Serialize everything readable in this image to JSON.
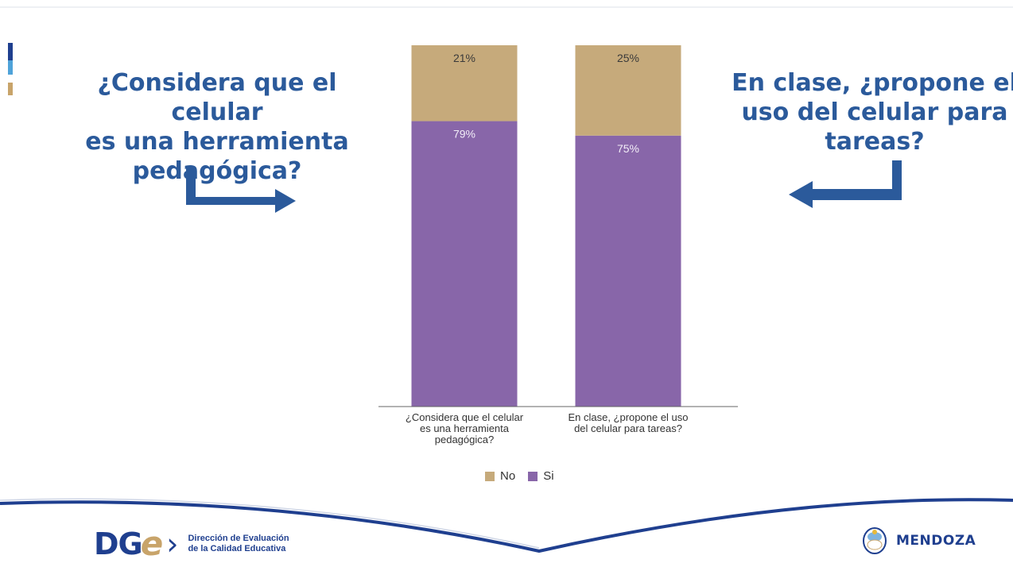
{
  "left_question": [
    "¿Considera que el celular",
    "es una herramienta",
    "pedagógica?"
  ],
  "right_question": [
    "En clase, ¿propone el",
    "uso del celular para",
    "tareas?"
  ],
  "chart_data": {
    "type": "bar",
    "stacked": true,
    "categories": [
      [
        "¿Considera que el celular",
        "es una herramienta",
        "pedagógica?"
      ],
      [
        "En clase, ¿propone el uso",
        "del celular para tareas?"
      ]
    ],
    "series": [
      {
        "name": "No",
        "values": [
          21,
          25
        ],
        "labels": [
          "21%",
          "25%"
        ],
        "color": "#c6aa7b"
      },
      {
        "name": "Si",
        "values": [
          79,
          75
        ],
        "labels": [
          "79%",
          "75%"
        ],
        "color": "#8866a9"
      }
    ],
    "stack_order": [
      "Si",
      "No"
    ],
    "ylim": [
      0,
      100
    ],
    "legend": "bottom",
    "grid": false
  },
  "footer": {
    "logo_left_letters": "DG",
    "logo_left_e": "e",
    "logo_left_line1": "Dirección de Evaluación",
    "logo_left_line2": "de la Calidad Educativa",
    "logo_right": "MENDOZA"
  },
  "colors": {
    "title": "#2b5a9b",
    "arrow": "#2b5a9b",
    "navy": "#1f3f8f",
    "gold": "#c8a46a"
  }
}
